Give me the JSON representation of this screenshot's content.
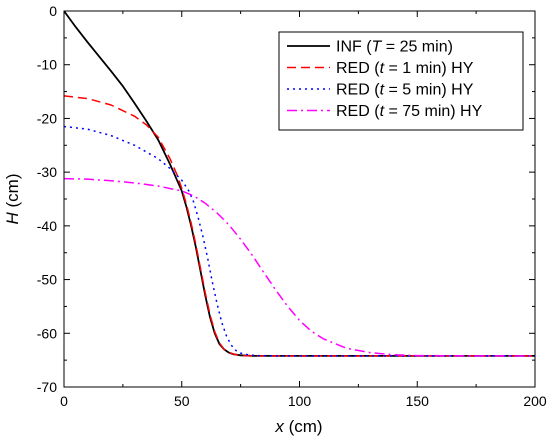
{
  "chart_data": {
    "type": "line",
    "xlabel_var": "x",
    "xlabel_unit": " (cm)",
    "ylabel_var": "H",
    "ylabel_unit": " (cm)",
    "xlim": [
      0,
      200
    ],
    "ylim": [
      -70,
      0
    ],
    "xticks": [
      0,
      50,
      100,
      150,
      200
    ],
    "yticks": [
      0,
      -10,
      -20,
      -30,
      -40,
      -50,
      -60,
      -70
    ],
    "grid": false,
    "legend_position": "top-right",
    "series": [
      {
        "name": "INF (T = 25 min)",
        "legend_parts": [
          "INF (",
          "T",
          " = 25 min)"
        ],
        "color": "#000000",
        "dash": "solid",
        "x": [
          0,
          5,
          10,
          15,
          20,
          25,
          30,
          35,
          40,
          45,
          48,
          50,
          52,
          54,
          56,
          58,
          60,
          62,
          64,
          66,
          68,
          70,
          72,
          75,
          80,
          90,
          100,
          150,
          200
        ],
        "y": [
          0,
          -3,
          -5.8,
          -8.5,
          -11.2,
          -14,
          -17.2,
          -20.5,
          -24,
          -28.5,
          -31.5,
          -33.5,
          -36.5,
          -40,
          -44,
          -48.5,
          -53,
          -57,
          -60,
          -62,
          -63,
          -63.6,
          -63.9,
          -64.1,
          -64.2,
          -64.2,
          -64.2,
          -64.2,
          -64.2
        ]
      },
      {
        "name": "RED (t = 1 min) HY",
        "legend_parts": [
          "RED (",
          "t",
          " = 1 min) HY"
        ],
        "color": "#ff0000",
        "dash": "dashed",
        "x": [
          0,
          10,
          20,
          30,
          35,
          40,
          45,
          48,
          50,
          52,
          54,
          56,
          58,
          60,
          62,
          64,
          66,
          68,
          70,
          73,
          76,
          80,
          90,
          100,
          150,
          200
        ],
        "y": [
          -15.8,
          -16.3,
          -17.5,
          -19.6,
          -21.2,
          -23.5,
          -27.5,
          -30.5,
          -33,
          -36,
          -39.5,
          -43.5,
          -48,
          -52.5,
          -56.5,
          -59.7,
          -61.8,
          -63,
          -63.6,
          -64,
          -64.15,
          -64.2,
          -64.2,
          -64.2,
          -64.2,
          -64.2
        ]
      },
      {
        "name": "RED (t = 5 min) HY",
        "legend_parts": [
          "RED (",
          "t",
          " = 5 min) HY"
        ],
        "color": "#0000ff",
        "dash": "dotted",
        "x": [
          0,
          10,
          20,
          30,
          40,
          45,
          50,
          53,
          55,
          57,
          59,
          61,
          63,
          65,
          67,
          69,
          71,
          73,
          75,
          78,
          82,
          90,
          100,
          150,
          200
        ],
        "y": [
          -21.5,
          -22,
          -23.2,
          -25,
          -27.5,
          -29.3,
          -31.5,
          -33.5,
          -35.5,
          -38.5,
          -42,
          -46,
          -50.5,
          -54.5,
          -58,
          -60.5,
          -62.2,
          -63.2,
          -63.7,
          -64,
          -64.15,
          -64.2,
          -64.2,
          -64.2,
          -64.2
        ]
      },
      {
        "name": "RED (t = 75 min) HY",
        "legend_parts": [
          "RED (",
          "t",
          " = 75 min) HY"
        ],
        "color": "#ff00ff",
        "dash": "dashdot",
        "x": [
          0,
          10,
          20,
          30,
          40,
          50,
          55,
          60,
          65,
          70,
          75,
          80,
          85,
          90,
          95,
          100,
          105,
          110,
          120,
          130,
          140,
          150,
          170,
          200
        ],
        "y": [
          -31.2,
          -31.3,
          -31.6,
          -32,
          -32.6,
          -33.5,
          -34.4,
          -35.8,
          -37.6,
          -39.8,
          -42.5,
          -45.5,
          -48.8,
          -52,
          -55,
          -57.6,
          -59.6,
          -61,
          -62.8,
          -63.6,
          -64,
          -64.15,
          -64.2,
          -64.2
        ]
      }
    ]
  }
}
